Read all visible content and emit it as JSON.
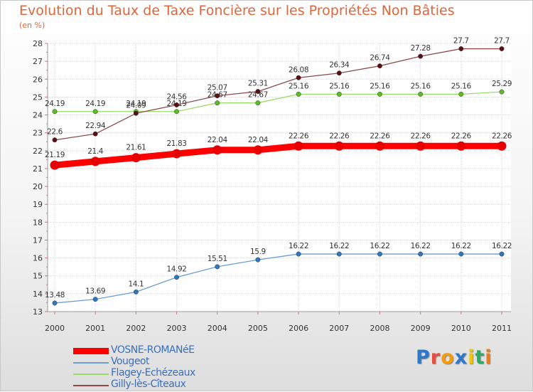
{
  "title": "Evolution du Taux de Taxe Foncière sur les Propriétés Non Bâties",
  "unit": "(en %)",
  "logo": {
    "letters": [
      "P",
      "r",
      "o",
      "x",
      "i",
      "t",
      "i"
    ],
    "colors": [
      "#2e7ac9",
      "#e74c3c",
      "#f39c12",
      "#2e7ac9",
      "#f1c40f",
      "#27ae60",
      "#e67e22"
    ]
  },
  "chart_data": {
    "type": "line",
    "title": "Evolution du Taux de Taxe Foncière sur les Propriétés Non Bâties",
    "ylabel": "(en %)",
    "xlabel": "",
    "ylim": [
      13,
      28
    ],
    "yticks": [
      "13",
      "14",
      "15",
      "16",
      "17",
      "18",
      "19",
      "20",
      "21",
      "22",
      "23",
      "24",
      "25",
      "26",
      "27",
      "28"
    ],
    "categories": [
      "2000",
      "2001",
      "2002",
      "2003",
      "2004",
      "2005",
      "2006",
      "2007",
      "2008",
      "2009",
      "2010",
      "2011"
    ],
    "series": [
      {
        "name": "VOSNE-ROMANéE",
        "color": "#ff0000",
        "marker": "#e60000",
        "values": [
          21.19,
          21.4,
          21.61,
          21.83,
          22.04,
          22.04,
          22.26,
          22.26,
          22.26,
          22.26,
          22.26,
          22.26
        ],
        "labels": [
          "21.19",
          "21.4",
          "21.61",
          "21.83",
          "22.04",
          "22.04",
          "22.26",
          "22.26",
          "22.26",
          "22.26",
          "22.26",
          "22.26"
        ]
      },
      {
        "name": "Vougeot",
        "color": "#6a9ed3",
        "marker": "#2f78c0",
        "values": [
          13.48,
          13.69,
          14.1,
          14.92,
          15.51,
          15.9,
          16.22,
          16.22,
          16.22,
          16.22,
          16.22,
          16.22
        ],
        "labels": [
          "13.48",
          "13.69",
          "14.1",
          "14.92",
          "15.51",
          "15.9",
          "16.22",
          "16.22",
          "16.22",
          "16.22",
          "16.22",
          "16.22"
        ]
      },
      {
        "name": "Flagey-Echézeaux",
        "color": "#99dd66",
        "marker": "#5dbb25",
        "values": [
          24.19,
          24.19,
          24.19,
          24.19,
          24.67,
          24.67,
          25.16,
          25.16,
          25.16,
          25.16,
          25.16,
          25.29
        ],
        "labels": [
          "24.19",
          "24.19",
          "24.19",
          "24.19",
          "24.67",
          "24.67",
          "25.16",
          "25.16",
          "25.16",
          "25.16",
          "25.16",
          "25.29"
        ]
      },
      {
        "name": "Gilly-lès-Cîteaux",
        "color": "#8b4a4a",
        "marker": "#5a1010",
        "values": [
          22.6,
          22.94,
          24.09,
          24.56,
          25.07,
          25.31,
          26.08,
          26.34,
          26.74,
          27.28,
          27.7,
          27.7
        ],
        "labels": [
          "22.6",
          "22.94",
          "24.09",
          "24.56",
          "25.07",
          "25.31",
          "26.08",
          "26.34",
          "26.74",
          "27.28",
          "27.7",
          "27.7"
        ]
      }
    ]
  }
}
